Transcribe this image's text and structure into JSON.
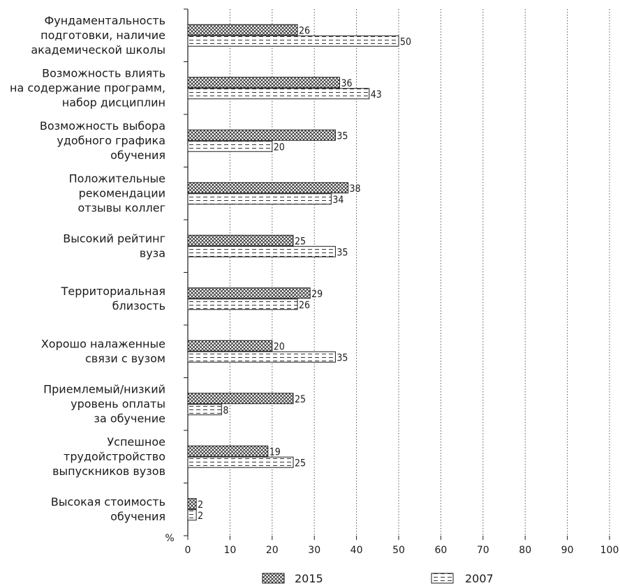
{
  "chart_data": {
    "type": "bar",
    "orientation": "horizontal",
    "categories": [
      [
        "Фундаментальность",
        "подготовки, наличие",
        "академической школы"
      ],
      [
        "Возможность влиять",
        "на содержание программ,",
        "набор дисциплин"
      ],
      [
        "Возможность выбора",
        "удобного графика",
        "обучения"
      ],
      [
        "Положительные",
        "рекомендации",
        "отзывы коллег"
      ],
      [
        "Высокий рейтинг",
        "вуза"
      ],
      [
        "Территориальная",
        "близость"
      ],
      [
        "Хорошо налаженные",
        "связи с вузом"
      ],
      [
        "Приемлемый/низкий",
        "уровень оплаты",
        "за обучение"
      ],
      [
        "Успешное",
        "трудойстройство",
        "выпускников вузов"
      ],
      [
        "Высокая стоимость",
        "обучения"
      ]
    ],
    "series": [
      {
        "name": "2015",
        "values": [
          26,
          36,
          35,
          38,
          25,
          29,
          20,
          25,
          19,
          2
        ],
        "pattern": "crosshatch"
      },
      {
        "name": "2007",
        "values": [
          50,
          43,
          20,
          34,
          35,
          26,
          35,
          8,
          25,
          2
        ],
        "pattern": "dashed-lines"
      }
    ],
    "xaxis_unit": "%",
    "xlim": [
      0,
      100
    ],
    "xticks": [
      0,
      10,
      20,
      30,
      40,
      50,
      60,
      70,
      80,
      90,
      100
    ],
    "grid": "vertical dotted",
    "legend": "bottom",
    "colors": {
      "ink": "#1a1a1a",
      "grid": "#555555",
      "background": "#ffffff"
    }
  }
}
